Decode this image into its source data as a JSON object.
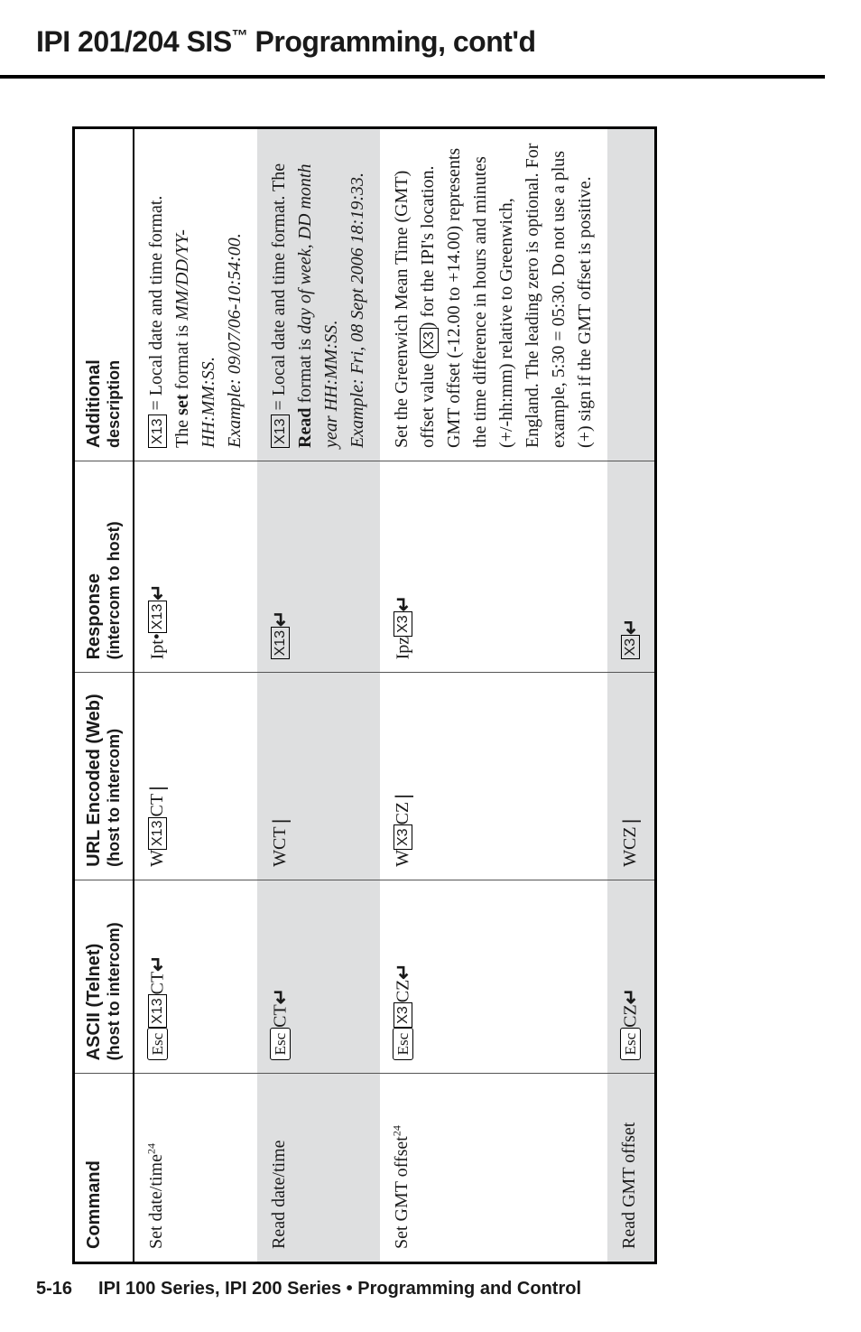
{
  "header": {
    "title_prefix": "IPI 201/204 SIS",
    "title_tm": "™",
    "title_suffix": " Programming, cont'd"
  },
  "table": {
    "headers": {
      "command": "Command",
      "ascii": "ASCII (Telnet)",
      "ascii_sub": "(host to intercom)",
      "url": "URL Encoded (Web)",
      "url_sub": "(host to intercom)",
      "response": "Response",
      "response_sub": "(intercom to host)",
      "additional": "Additional",
      "additional_sub": "description"
    },
    "rows": [
      {
        "shaded": false,
        "command": "Set date/time",
        "command_sup": "24",
        "ascii_parts": {
          "esc": "Esc",
          "var": "X13",
          "after": "CT",
          "ret": "↵"
        },
        "url_parts": {
          "pre": "W",
          "var": "X13",
          "after": "CT",
          "pipe": "|"
        },
        "resp_parts": {
          "pre": "Ipt•",
          "var": "X13",
          "ret": "↵"
        },
        "desc_lines": [
          {
            "parts": [
              {
                "var": "X13"
              },
              {
                "t": " = Local date and time format."
              }
            ]
          },
          {
            "parts": [
              {
                "t": "The "
              },
              {
                "b": "set"
              },
              {
                "t": " format is "
              },
              {
                "i": "MM/DD/YY-HH:MM:SS"
              },
              {
                "t": "."
              }
            ]
          },
          {
            "parts": [
              {
                "i": "Example: 09/07/06-10:54:00."
              }
            ]
          }
        ]
      },
      {
        "shaded": true,
        "command": "Read date/time",
        "ascii_parts": {
          "esc": "Esc",
          "after": "CT",
          "ret": "↵"
        },
        "url_parts": {
          "pre": "W",
          "after": "CT",
          "pipe": "|"
        },
        "resp_parts": {
          "var": "X13",
          "ret": "↵"
        },
        "desc_lines": [
          {
            "parts": [
              {
                "var": "X13"
              },
              {
                "t": " = Local date and time format.  The "
              },
              {
                "b": "Read"
              },
              {
                "t": " format is "
              },
              {
                "i": "day of week, DD month year HH:MM:SS"
              },
              {
                "t": "."
              }
            ]
          },
          {
            "parts": [
              {
                "i": "Example: Fri, 08 Sept 2006 18:19:33."
              }
            ]
          }
        ]
      },
      {
        "shaded": false,
        "command": "Set GMT offset",
        "command_sup": "24",
        "ascii_parts": {
          "esc": "Esc",
          "var": "X3",
          "after": "CZ",
          "ret": "↵"
        },
        "url_parts": {
          "pre": "W",
          "var": "X3",
          "after": "CZ",
          "pipe": "|"
        },
        "resp_parts": {
          "pre": "Ipz",
          "var": "X3",
          "ret": "↵"
        },
        "desc_lines": [
          {
            "parts": [
              {
                "t": "Set the Greenwich Mean Time (GMT) offset value ("
              },
              {
                "var": "X3"
              },
              {
                "t": ") for the IPI's location."
              }
            ]
          },
          {
            "parts": [
              {
                "t": "GMT offset (-12.00 to +14.00) represents the time difference in hours and minutes (+/-hh:mm) relative to Greenwich, England. The leading zero is optional. For example, 5:30 = 05:30. Do not use a plus (+) sign if the GMT offset is positive."
              }
            ]
          }
        ]
      },
      {
        "shaded": true,
        "command": "Read GMT offset",
        "ascii_parts": {
          "esc": "Esc",
          "after": "CZ",
          "ret": "↵"
        },
        "url_parts": {
          "pre": "W",
          "after": "CZ",
          "pipe": "|"
        },
        "resp_parts": {
          "var": "X3",
          "ret": "↵"
        },
        "desc_lines": []
      }
    ]
  },
  "footer": {
    "page": "5-16",
    "text": "IPI 100 Series, IPI 200 Series • Programming and Control"
  }
}
